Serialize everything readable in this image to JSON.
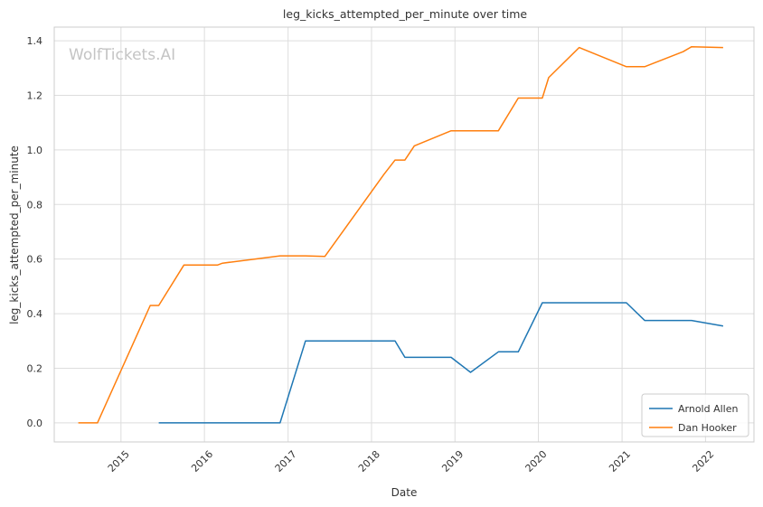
{
  "watermark": "WolfTickets.AI",
  "chart_data": {
    "type": "line",
    "title": "leg_kicks_attempted_per_minute over time",
    "xlabel": "Date",
    "ylabel": "leg_kicks_attempted_per_minute",
    "xlim": [
      "2014-03-15",
      "2022-08-01"
    ],
    "ylim": [
      -0.07,
      1.45
    ],
    "x_ticks": [
      "2015-01-01",
      "2016-01-01",
      "2017-01-01",
      "2018-01-01",
      "2019-01-01",
      "2020-01-01",
      "2021-01-01",
      "2022-01-01"
    ],
    "x_tick_labels": [
      "2015",
      "2016",
      "2017",
      "2018",
      "2019",
      "2020",
      "2021",
      "2022"
    ],
    "y_ticks": [
      0.0,
      0.2,
      0.4,
      0.6,
      0.8,
      1.0,
      1.2,
      1.4
    ],
    "y_tick_labels": [
      "0.0",
      "0.2",
      "0.4",
      "0.6",
      "0.8",
      "1.0",
      "1.2",
      "1.4"
    ],
    "grid": true,
    "legend_position": "bottom-right",
    "series": [
      {
        "name": "Arnold Allen",
        "color": "#1f77b4",
        "points": [
          [
            "2015-06-15",
            0.0
          ],
          [
            "2016-11-27",
            0.0
          ],
          [
            "2017-03-18",
            0.3
          ],
          [
            "2018-04-14",
            0.3
          ],
          [
            "2018-05-27",
            0.24
          ],
          [
            "2018-12-15",
            0.24
          ],
          [
            "2019-03-10",
            0.185
          ],
          [
            "2019-07-10",
            0.26
          ],
          [
            "2019-10-05",
            0.26
          ],
          [
            "2020-01-18",
            0.44
          ],
          [
            "2021-01-20",
            0.44
          ],
          [
            "2021-04-10",
            0.375
          ],
          [
            "2021-11-01",
            0.375
          ],
          [
            "2022-03-19",
            0.355
          ]
        ]
      },
      {
        "name": "Dan Hooker",
        "color": "#ff7f0e",
        "points": [
          [
            "2014-06-28",
            0.0
          ],
          [
            "2014-09-20",
            0.0
          ],
          [
            "2015-05-09",
            0.43
          ],
          [
            "2015-06-15",
            0.43
          ],
          [
            "2015-10-03",
            0.578
          ],
          [
            "2016-02-27",
            0.578
          ],
          [
            "2016-03-20",
            0.585
          ],
          [
            "2016-11-27",
            0.612
          ],
          [
            "2017-03-18",
            0.612
          ],
          [
            "2017-06-11",
            0.61
          ],
          [
            "2018-02-24",
            0.91
          ],
          [
            "2018-04-14",
            0.963
          ],
          [
            "2018-05-27",
            0.963
          ],
          [
            "2018-07-07",
            1.015
          ],
          [
            "2018-12-15",
            1.07
          ],
          [
            "2019-07-10",
            1.07
          ],
          [
            "2019-10-05",
            1.19
          ],
          [
            "2020-01-18",
            1.19
          ],
          [
            "2020-02-15",
            1.265
          ],
          [
            "2020-06-27",
            1.375
          ],
          [
            "2021-01-20",
            1.305
          ],
          [
            "2021-04-10",
            1.305
          ],
          [
            "2021-09-25",
            1.36
          ],
          [
            "2021-11-01",
            1.378
          ],
          [
            "2022-03-19",
            1.375
          ]
        ]
      }
    ]
  }
}
